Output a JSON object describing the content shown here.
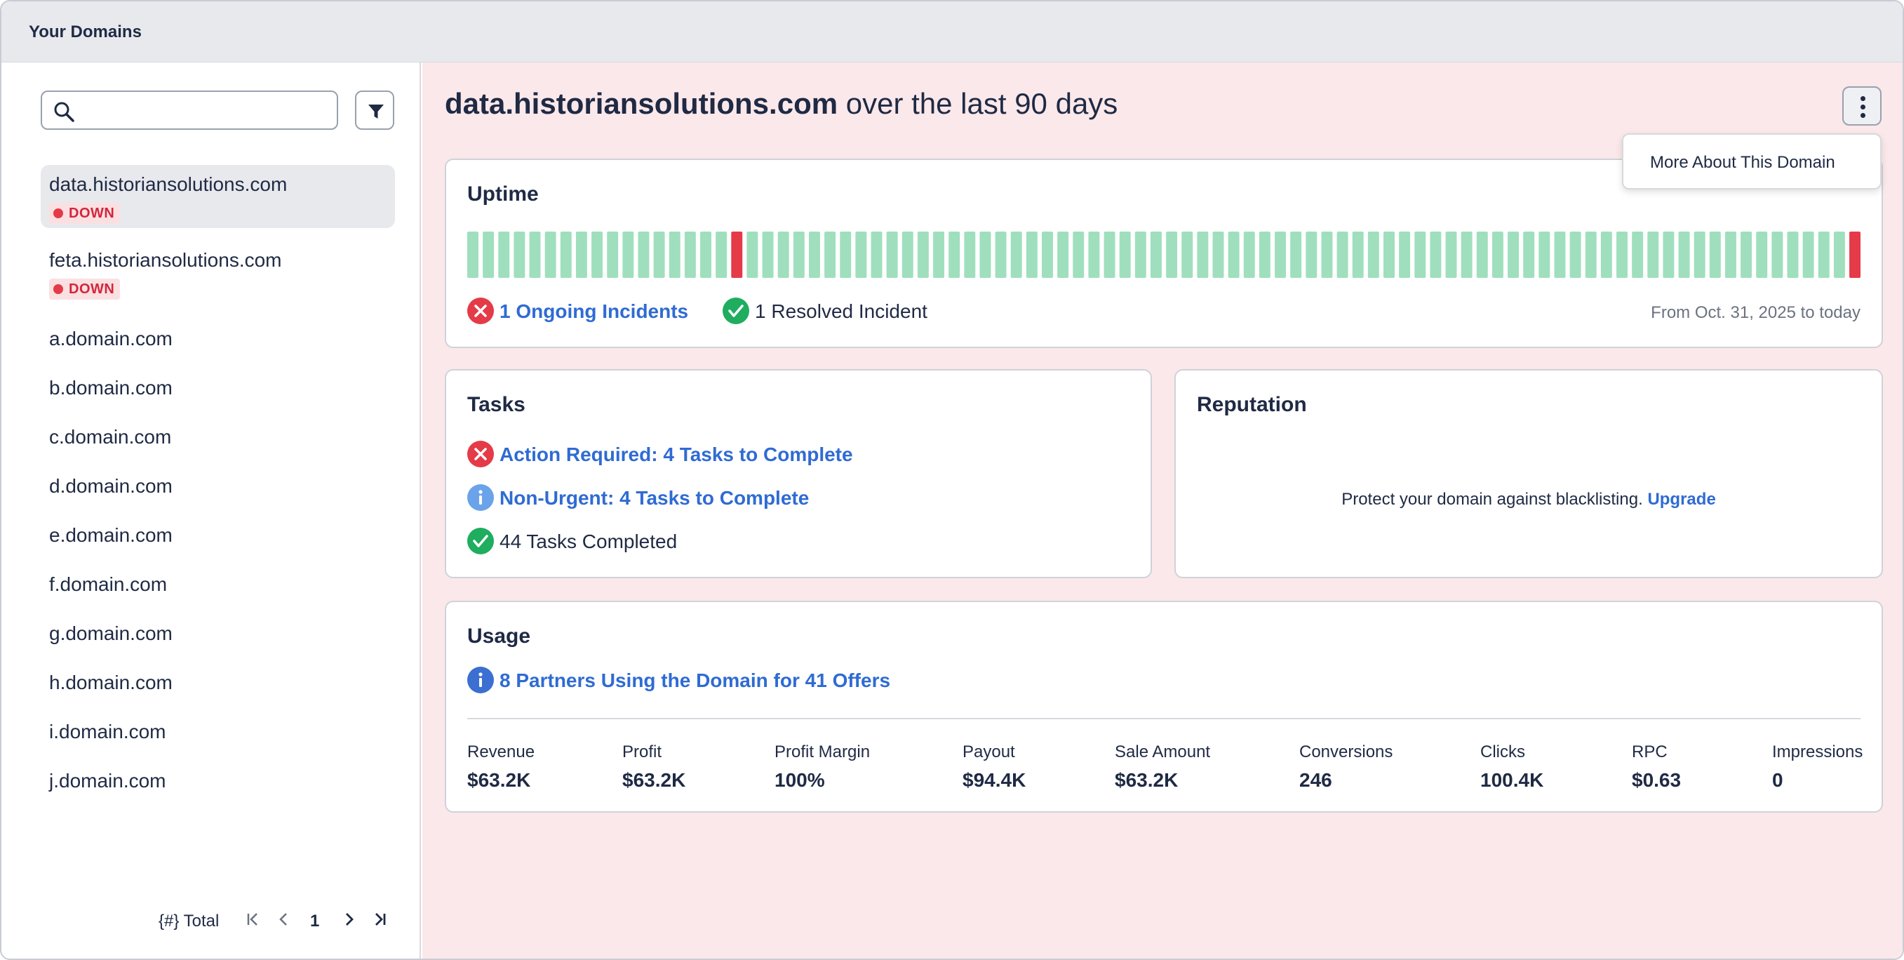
{
  "app": {
    "title": "Your Domains"
  },
  "sidebar": {
    "search": {
      "placeholder": "",
      "value": ""
    },
    "domains": [
      {
        "name": "data.historiansolutions.com",
        "status": "DOWN",
        "selected": true
      },
      {
        "name": "feta.historiansolutions.com",
        "status": "DOWN",
        "selected": false
      },
      {
        "name": "a.domain.com"
      },
      {
        "name": "b.domain.com"
      },
      {
        "name": "c.domain.com"
      },
      {
        "name": "d.domain.com"
      },
      {
        "name": "e.domain.com"
      },
      {
        "name": "f.domain.com"
      },
      {
        "name": "g.domain.com"
      },
      {
        "name": "h.domain.com"
      },
      {
        "name": "i.domain.com"
      },
      {
        "name": "j.domain.com"
      }
    ],
    "pagination": {
      "total_label": "{#} Total",
      "current_page": "1"
    }
  },
  "header": {
    "domain": "data.historiansolutions.com",
    "suffix": " over the last 90 days",
    "menu_item": "More About This Domain"
  },
  "uptime": {
    "title": "Uptime",
    "days": 90,
    "down_days": [
      17,
      89
    ],
    "colors": {
      "up": "#9fdfbd",
      "down": "#e53a47"
    },
    "ongoing_label": "1 Ongoing Incidents",
    "resolved_label": "1 Resolved Incident",
    "range_label": "From Oct. 31, 2025 to today"
  },
  "tasks": {
    "title": "Tasks",
    "action_required": "Action Required: 4 Tasks to Complete",
    "non_urgent": "Non-Urgent: 4 Tasks to Complete",
    "completed": "44 Tasks Completed"
  },
  "reputation": {
    "title": "Reputation",
    "text": "Protect your domain against blacklisting.",
    "upgrade": "Upgrade"
  },
  "usage": {
    "title": "Usage",
    "partners_link": "8 Partners Using the Domain for 41 Offers",
    "metrics": [
      {
        "label": "Revenue",
        "value": "$63.2K"
      },
      {
        "label": "Profit",
        "value": "$63.2K"
      },
      {
        "label": "Profit Margin",
        "value": "100%"
      },
      {
        "label": "Payout",
        "value": "$94.4K"
      },
      {
        "label": "Sale Amount",
        "value": "$63.2K"
      },
      {
        "label": "Conversions",
        "value": "246"
      },
      {
        "label": "Clicks",
        "value": "100.4K"
      },
      {
        "label": "RPC",
        "value": "$0.63"
      },
      {
        "label": "Impressions",
        "value": "0"
      }
    ]
  },
  "colors": {
    "accent": "#2f6bd3",
    "danger": "#e53a47",
    "success": "#1fad5f",
    "main_bg": "#fbe8ea"
  }
}
